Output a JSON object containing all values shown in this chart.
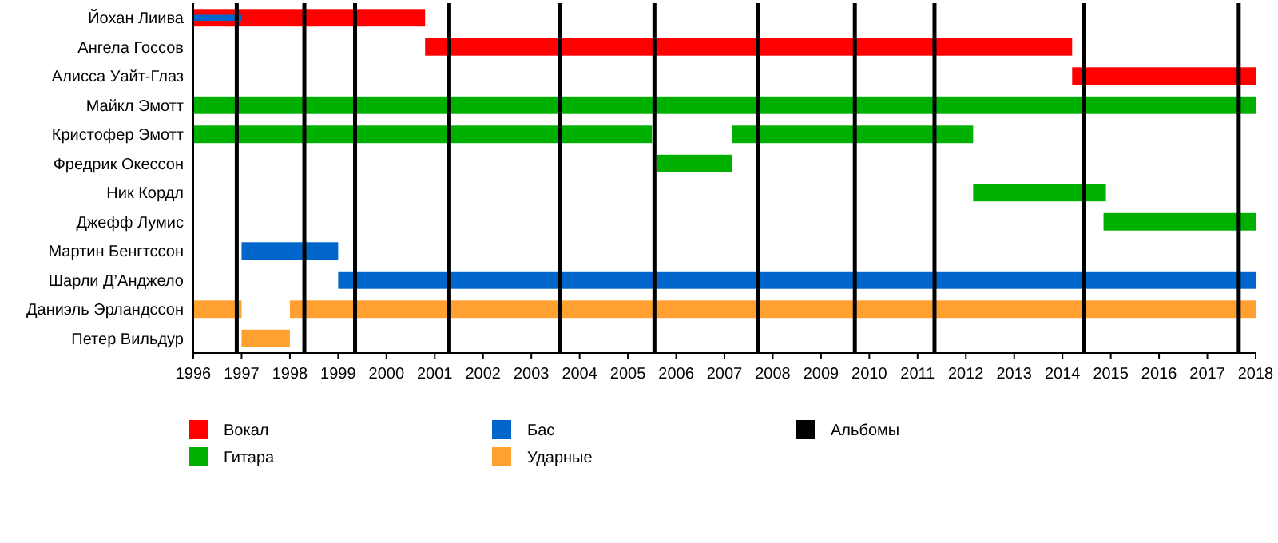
{
  "chart_data": {
    "type": "bar",
    "orientation": "horizontal",
    "categories": [
      "Йохан Лиива",
      "Ангела Госсов",
      "Алисса Уайт-Глаз",
      "Майкл Эмотт",
      "Кристофер Эмотт",
      "Фредрик Окессон",
      "Ник Кордл",
      "Джефф Лумис",
      "Мартин Бенгтссон",
      "Шарли Д’Анджело",
      "Даниэль Эрландссон",
      "Петер Вильдур"
    ],
    "series": [
      {
        "name": "Вокал",
        "color": "#ff0000",
        "base": [
          1996,
          2000.8,
          2014.2,
          null,
          null,
          null,
          null,
          null,
          null,
          null,
          null,
          null
        ],
        "values": [
          4.8,
          13.4,
          3.8,
          null,
          null,
          null,
          null,
          null,
          null,
          null,
          null,
          null
        ]
      },
      {
        "name": "Гитара",
        "color": "#00b000",
        "base": [
          null,
          null,
          null,
          1996,
          1996,
          2005.6,
          2012.15,
          2014.85,
          null,
          null,
          null,
          null
        ],
        "values": [
          null,
          null,
          null,
          22,
          9.5,
          1.55,
          2.75,
          3.15,
          null,
          null,
          null,
          null
        ]
      },
      {
        "color": "#00b000",
        "base": [
          null,
          null,
          null,
          null,
          2007.15,
          null,
          null,
          null,
          null,
          null,
          null,
          null
        ],
        "values": [
          null,
          null,
          null,
          null,
          5,
          null,
          null,
          null,
          null,
          null,
          null,
          null
        ]
      },
      {
        "name": "Бас",
        "color": "#0066cc",
        "base": [
          null,
          null,
          null,
          null,
          null,
          null,
          null,
          null,
          1997,
          1999,
          null,
          null
        ],
        "values": [
          null,
          null,
          null,
          null,
          null,
          null,
          null,
          null,
          2,
          19,
          null,
          null
        ]
      },
      {
        "color": "#0066cc",
        "base": [
          1996,
          null,
          null,
          null,
          null,
          null,
          null,
          null,
          null,
          null,
          null,
          null
        ],
        "values": [
          1,
          null,
          null,
          null,
          null,
          null,
          null,
          null,
          null,
          null,
          null,
          null
        ]
      },
      {
        "name": "Ударные",
        "color": "#ffa030",
        "base": [
          null,
          null,
          null,
          null,
          null,
          null,
          null,
          null,
          null,
          null,
          1998,
          1997
        ],
        "values": [
          null,
          null,
          null,
          null,
          null,
          null,
          null,
          null,
          null,
          null,
          20,
          1
        ]
      },
      {
        "color": "#ffa030",
        "base": [
          null,
          null,
          null,
          null,
          null,
          null,
          null,
          null,
          null,
          null,
          1996,
          null
        ],
        "values": [
          null,
          null,
          null,
          null,
          null,
          null,
          null,
          null,
          null,
          null,
          1,
          null
        ]
      }
    ],
    "xlim": [
      1996,
      2018
    ],
    "xticks": [
      1996,
      1997,
      1998,
      1999,
      2000,
      2001,
      2002,
      2003,
      2004,
      2005,
      2006,
      2007,
      2008,
      2009,
      2010,
      2011,
      2012,
      2013,
      2014,
      2015,
      2016,
      2017,
      2018
    ],
    "ref_lines": [
      {
        "axis": "x",
        "value": 1996.9,
        "color": "#000000"
      },
      {
        "axis": "x",
        "value": 1998.3,
        "color": "#000000"
      },
      {
        "axis": "x",
        "value": 1999.35,
        "color": "#000000"
      },
      {
        "axis": "x",
        "value": 2001.3,
        "color": "#000000"
      },
      {
        "axis": "x",
        "value": 2003.6,
        "color": "#000000"
      },
      {
        "axis": "x",
        "value": 2005.55,
        "color": "#000000"
      },
      {
        "axis": "x",
        "value": 2007.7,
        "color": "#000000"
      },
      {
        "axis": "x",
        "value": 2009.7,
        "color": "#000000"
      },
      {
        "axis": "x",
        "value": 2011.35,
        "color": "#000000"
      },
      {
        "axis": "x",
        "value": 2014.45,
        "color": "#000000"
      },
      {
        "axis": "x",
        "value": 2017.65,
        "color": "#000000"
      }
    ],
    "annotations": [
      "Альбомы"
    ],
    "legend": "bottom"
  }
}
